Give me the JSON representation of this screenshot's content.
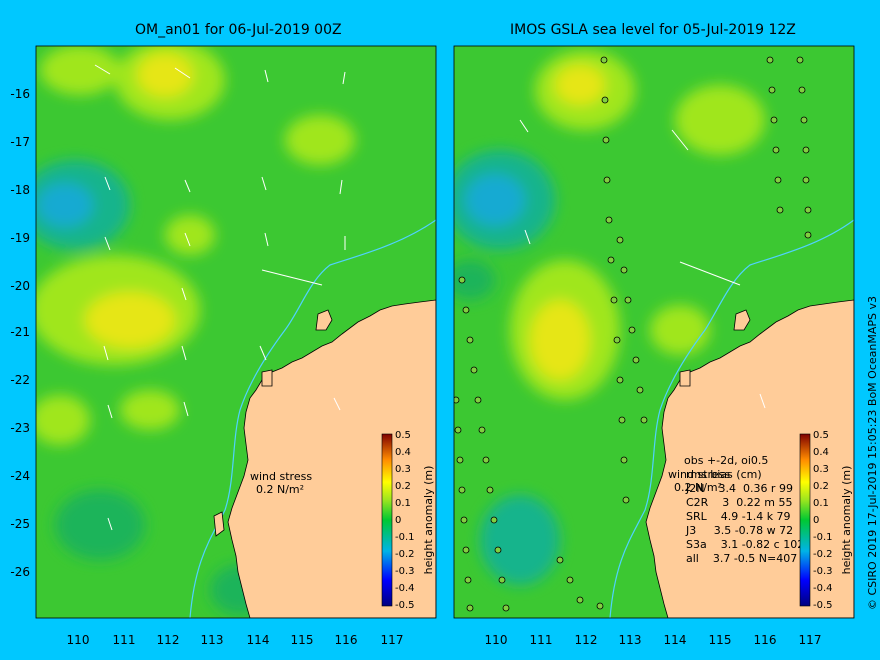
{
  "left_panel": {
    "title": "OM_an01 for 06-Jul-2019 00Z",
    "wind_label": "wind stress",
    "wind_unit": "0.2 N/m²"
  },
  "right_panel": {
    "title": "IMOS GSLA sea level  for 05-Jul-2019 12Z",
    "wind_label": "wind stress",
    "wind_unit": "0.2 N/m²",
    "stats_header": "obs +-2d, oi0.5",
    "stats_subheader": "rms    bias (cm)",
    "stats_rows": [
      "J2N    3.4  0.36 r 99",
      "C2R    3  0.22 m 55",
      "SRL    4.9 -1.4 k 79",
      "J3     3.5 -0.78 w 72",
      "S3a    3.1 -0.82 c 102",
      "all    3.7 -0.5 N=407"
    ]
  },
  "axes": {
    "x_ticks": [
      "110",
      "111",
      "112",
      "113",
      "114",
      "115",
      "116",
      "117"
    ],
    "y_ticks": [
      "-16",
      "-17",
      "-18",
      "-19",
      "-20",
      "-21",
      "-22",
      "-23",
      "-24",
      "-25",
      "-26"
    ]
  },
  "colorbar": {
    "label": "height anomaly (m)",
    "ticks": [
      "0.5",
      "0.4",
      "0.3",
      "0.2",
      "0.1",
      "0",
      "-0.1",
      "-0.2",
      "-0.3",
      "-0.4",
      "-0.5"
    ]
  },
  "credit": "© CSIRO 2019   17-Jul-2019 15:05:23 BoM OceanMAPS v3",
  "colors": {
    "background": "#00c8ff",
    "land": "#ffcc99",
    "sea_base": "#3cc832",
    "anomaly_yellow": "#e6e619",
    "anomaly_blue": "#19aad2"
  }
}
